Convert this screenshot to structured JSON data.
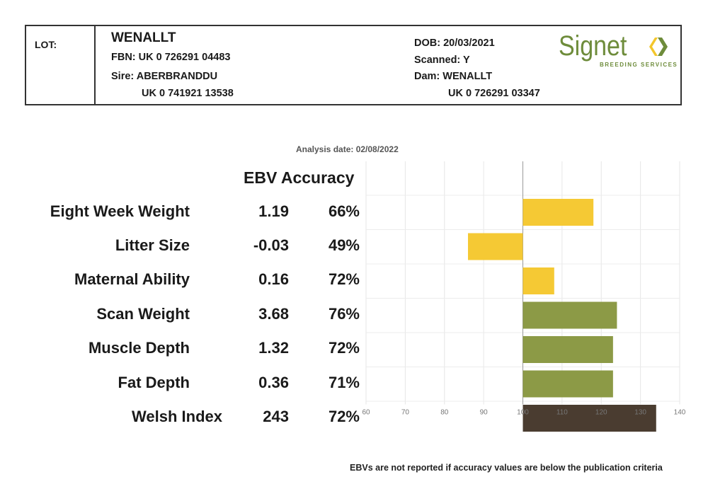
{
  "header": {
    "lot_label": "LOT:",
    "name": "WENALLT",
    "fbn": "FBN: UK 0 726291 04483",
    "sire": "Sire: ABERBRANDDU",
    "sire_id": "UK 0 741921 13538",
    "dob": "DOB: 20/03/2021",
    "scanned": "Scanned: Y",
    "dam": "Dam: WENALLT",
    "dam_id": "UK 0 726291 03347"
  },
  "logo": {
    "word": "Signet",
    "sub": "BREEDING SERVICES",
    "color": "#6e8c3b",
    "arrow_colors": [
      "#f3c62c",
      "#6e8c3b"
    ]
  },
  "analysis_date": "Analysis date: 02/08/2022",
  "column_heading": "EBV Accuracy",
  "footnote": "EBVs are not reported if accuracy values are below the publication criteria",
  "chart_data": {
    "type": "bar",
    "orientation": "horizontal",
    "baseline": 100,
    "xlim": [
      60,
      140
    ],
    "x_ticks": [
      "60",
      "70",
      "80",
      "90",
      "100",
      "110",
      "120",
      "130",
      "140"
    ],
    "grid": true,
    "categories": [
      "Eight Week Weight",
      "Litter Size",
      "Maternal Ability",
      "Scan Weight",
      "Muscle Depth",
      "Fat Depth",
      "Welsh Index"
    ],
    "ebv": [
      "1.19",
      "-0.03",
      "0.16",
      "3.68",
      "1.32",
      "0.36",
      "243"
    ],
    "accuracy": [
      "66%",
      "49%",
      "72%",
      "76%",
      "72%",
      "71%",
      "72%"
    ],
    "values": [
      118,
      86,
      108,
      124,
      123,
      123,
      134
    ],
    "colors": [
      "#f5c934",
      "#f5c934",
      "#f5c934",
      "#8c9a46",
      "#8c9a46",
      "#8c9a46",
      "#4a3c30"
    ]
  }
}
